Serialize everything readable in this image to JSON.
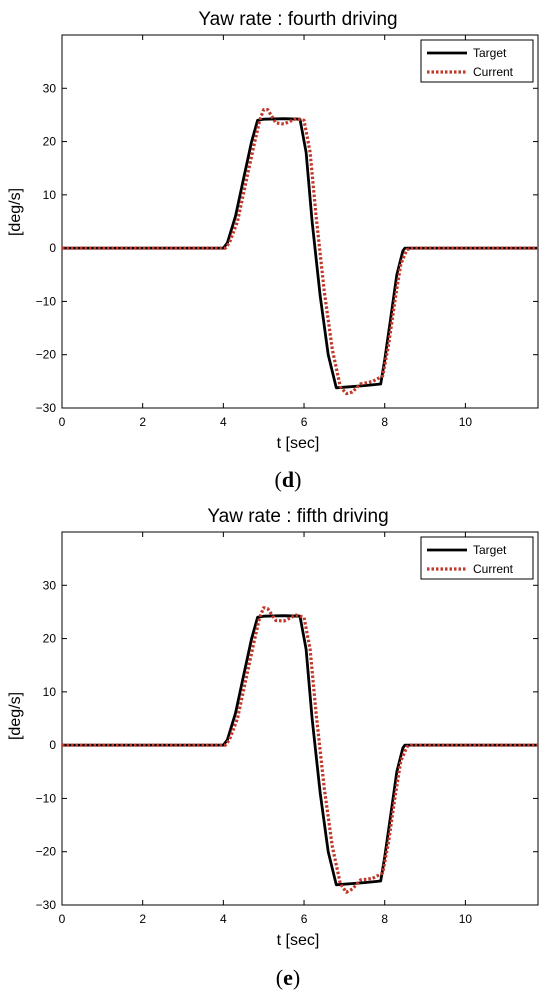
{
  "chart_data": [
    {
      "type": "line",
      "panel_label": "d",
      "title": "Yaw rate : fourth driving",
      "xlabel": "t [sec]",
      "ylabel": "[deg/s]",
      "xlim": [
        0,
        11.8
      ],
      "ylim": [
        -30,
        40
      ],
      "xticks": [
        0,
        2,
        4,
        6,
        8,
        10
      ],
      "yticks": [
        -30,
        -20,
        -10,
        0,
        10,
        20,
        30
      ],
      "grid": false,
      "legend_position": "top-right",
      "series": [
        {
          "name": "Target",
          "color": "#000000",
          "style": "solid",
          "x": [
            0,
            4.0,
            4.1,
            4.3,
            4.5,
            4.7,
            4.85,
            5.0,
            5.5,
            5.9,
            6.05,
            6.2,
            6.4,
            6.6,
            6.8,
            7.5,
            7.9,
            8.0,
            8.15,
            8.3,
            8.45,
            8.5,
            11.8
          ],
          "y": [
            0,
            0,
            1,
            6,
            13,
            20,
            24,
            24.2,
            24.3,
            24.2,
            18,
            5,
            -9,
            -20,
            -26.2,
            -25.8,
            -25.5,
            -21,
            -13,
            -5,
            -0.5,
            0,
            0
          ]
        },
        {
          "name": "Current",
          "color": "#c0392b",
          "style": "dotted",
          "x": [
            0,
            4.05,
            4.15,
            4.35,
            4.55,
            4.75,
            4.9,
            5.0,
            5.1,
            5.3,
            5.5,
            5.8,
            6.0,
            6.15,
            6.3,
            6.5,
            6.7,
            6.9,
            7.05,
            7.2,
            7.4,
            7.7,
            7.95,
            8.1,
            8.25,
            8.4,
            8.55,
            8.65,
            11.8
          ],
          "y": [
            0,
            0,
            1,
            5,
            12,
            19,
            24,
            26,
            26,
            23.5,
            23.3,
            24.3,
            24,
            18,
            6,
            -8,
            -19,
            -26,
            -27.3,
            -27,
            -25.5,
            -25,
            -24,
            -18,
            -10,
            -3,
            -0.3,
            0,
            0
          ]
        }
      ]
    },
    {
      "type": "line",
      "panel_label": "e",
      "title": "Yaw rate : fifth driving",
      "xlabel": "t [sec]",
      "ylabel": "[deg/s]",
      "xlim": [
        0,
        11.8
      ],
      "ylim": [
        -30,
        40
      ],
      "xticks": [
        0,
        2,
        4,
        6,
        8,
        10
      ],
      "yticks": [
        -30,
        -20,
        -10,
        0,
        10,
        20,
        30
      ],
      "grid": false,
      "legend_position": "top-right",
      "series": [
        {
          "name": "Target",
          "color": "#000000",
          "style": "solid",
          "x": [
            0,
            4.0,
            4.1,
            4.3,
            4.5,
            4.7,
            4.85,
            5.0,
            5.5,
            5.9,
            6.05,
            6.2,
            6.4,
            6.6,
            6.8,
            7.5,
            7.9,
            8.0,
            8.15,
            8.3,
            8.45,
            8.5,
            11.8
          ],
          "y": [
            0,
            0,
            1,
            6,
            13,
            20,
            24,
            24.2,
            24.3,
            24.2,
            18,
            5,
            -9,
            -20,
            -26.2,
            -25.8,
            -25.5,
            -21,
            -13,
            -5,
            -0.5,
            0,
            0
          ]
        },
        {
          "name": "Current",
          "color": "#c0392b",
          "style": "dotted",
          "x": [
            0,
            4.05,
            4.15,
            4.35,
            4.55,
            4.75,
            4.9,
            5.0,
            5.1,
            5.3,
            5.5,
            5.8,
            6.0,
            6.15,
            6.3,
            6.5,
            6.7,
            6.9,
            7.05,
            7.2,
            7.4,
            7.7,
            7.95,
            8.1,
            8.25,
            8.4,
            8.55,
            8.65,
            11.8
          ],
          "y": [
            0,
            0,
            1,
            5,
            12,
            19,
            24,
            25.8,
            25.6,
            23.4,
            23.3,
            24.4,
            24,
            18,
            6,
            -8,
            -19,
            -26,
            -27.6,
            -27,
            -25.3,
            -25,
            -24,
            -18,
            -10,
            -3,
            -0.3,
            0,
            0
          ]
        }
      ]
    }
  ]
}
